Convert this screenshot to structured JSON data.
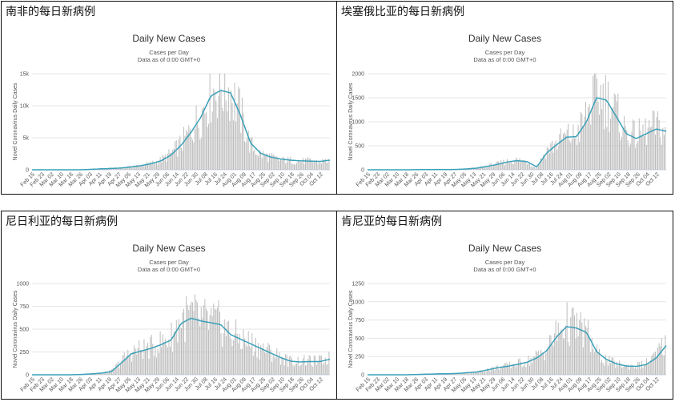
{
  "chart_data": [
    {
      "type": "bar",
      "panel_title": "南非的每日新病例",
      "title": "Daily New Cases",
      "subtitle": "Cases per Day",
      "subtitle2": "Data as of 0:00 GMT+0",
      "ylabel": "Novel Coronavirus Daily Cases",
      "ylim": [
        0,
        15000
      ],
      "yticks": [
        {
          "v": 0,
          "t": "0"
        },
        {
          "v": 5000,
          "t": "5k"
        },
        {
          "v": 10000,
          "t": "10k"
        },
        {
          "v": 15000,
          "t": "15k"
        }
      ],
      "x_labels": [
        "Feb 15",
        "Feb 23",
        "Mar 02",
        "Mar 10",
        "Mar 18",
        "Mar 26",
        "Apr 03",
        "Apr 11",
        "Apr 19",
        "Apr 27",
        "May 05",
        "May 13",
        "May 21",
        "May 29",
        "Jun 06",
        "Jun 14",
        "Jun 22",
        "Jun 30",
        "Jul 08",
        "Jul 16",
        "Jul 24",
        "Aug 01",
        "Aug 09",
        "Aug 17",
        "Aug 25",
        "Sep 02",
        "Sep 10",
        "Sep 18",
        "Sep 26",
        "Oct 04",
        "Oct 12"
      ],
      "series": [
        {
          "kind": "bar",
          "values": [
            0,
            0,
            0,
            0,
            0,
            10,
            80,
            200,
            250,
            300,
            500,
            700,
            1000,
            1500,
            2500,
            4000,
            6000,
            8500,
            12000,
            13000,
            12500,
            9000,
            4000,
            2500,
            2000,
            1500,
            1500,
            1300,
            1400,
            1200,
            1500
          ]
        },
        {
          "kind": "line",
          "values": [
            0,
            0,
            0,
            0,
            0,
            5,
            70,
            150,
            200,
            280,
            450,
            650,
            950,
            1400,
            2300,
            3800,
            5800,
            8200,
            11500,
            12400,
            12000,
            8500,
            4200,
            2600,
            2000,
            1700,
            1500,
            1400,
            1350,
            1300,
            1500
          ]
        }
      ]
    },
    {
      "type": "bar",
      "panel_title": "埃塞俄比亚的每日新病例",
      "title": "Daily New Cases",
      "subtitle": "Cases per Day",
      "subtitle2": "Data as of 0:00 GMT+0",
      "ylabel": "Novel Coronavirus Daily Cases",
      "ylim": [
        0,
        2000
      ],
      "yticks": [
        {
          "v": 0,
          "t": "0"
        },
        {
          "v": 500,
          "t": "500"
        },
        {
          "v": 1000,
          "t": "1000"
        },
        {
          "v": 1500,
          "t": "1500"
        },
        {
          "v": 2000,
          "t": "2000"
        }
      ],
      "x_labels": [
        "Feb 15",
        "Feb 23",
        "Mar 02",
        "Mar 10",
        "Mar 18",
        "Mar 26",
        "Apr 03",
        "Apr 11",
        "Apr 19",
        "Apr 27",
        "May 05",
        "May 13",
        "May 21",
        "May 29",
        "Jun 06",
        "Jun 14",
        "Jun 22",
        "Jun 30",
        "Jul 08",
        "Jul 16",
        "Jul 24",
        "Aug 01",
        "Aug 09",
        "Aug 17",
        "Aug 25",
        "Sep 02",
        "Sep 10",
        "Sep 18",
        "Sep 26",
        "Oct 04",
        "Oct 12"
      ],
      "series": [
        {
          "kind": "bar",
          "values": [
            0,
            0,
            0,
            0,
            0,
            3,
            5,
            5,
            5,
            8,
            20,
            40,
            80,
            120,
            170,
            200,
            180,
            30,
            400,
            550,
            700,
            700,
            1100,
            1600,
            1500,
            1200,
            800,
            700,
            800,
            900,
            800
          ]
        },
        {
          "kind": "line",
          "values": [
            0,
            0,
            0,
            0,
            0,
            2,
            4,
            5,
            5,
            7,
            18,
            35,
            70,
            110,
            160,
            190,
            170,
            60,
            350,
            520,
            680,
            690,
            1000,
            1500,
            1450,
            1100,
            750,
            650,
            750,
            850,
            800
          ]
        }
      ]
    },
    {
      "type": "bar",
      "panel_title": "尼日利亚的每日新病例",
      "title": "Daily New Cases",
      "subtitle": "Cases per Day",
      "subtitle2": "Data as of 0:00 GMT+0",
      "ylabel": "Novel Coronavirus Daily Cases",
      "ylim": [
        0,
        1000
      ],
      "yticks": [
        {
          "v": 0,
          "t": "0"
        },
        {
          "v": 250,
          "t": "250"
        },
        {
          "v": 500,
          "t": "500"
        },
        {
          "v": 750,
          "t": "750"
        },
        {
          "v": 1000,
          "t": "1000"
        }
      ],
      "x_labels": [
        "Feb 15",
        "Feb 23",
        "Mar 02",
        "Mar 10",
        "Mar 18",
        "Mar 26",
        "Apr 03",
        "Apr 11",
        "Apr 19",
        "Apr 27",
        "May 05",
        "May 13",
        "May 21",
        "May 29",
        "Jun 06",
        "Jun 14",
        "Jun 22",
        "Jun 30",
        "Jul 08",
        "Jul 16",
        "Jul 24",
        "Aug 01",
        "Aug 09",
        "Aug 17",
        "Aug 25",
        "Sep 02",
        "Sep 10",
        "Sep 18",
        "Sep 26",
        "Oct 04",
        "Oct 12"
      ],
      "series": [
        {
          "kind": "bar",
          "values": [
            0,
            0,
            0,
            0,
            0,
            5,
            10,
            20,
            40,
            150,
            250,
            280,
            300,
            350,
            400,
            600,
            650,
            600,
            580,
            560,
            450,
            400,
            350,
            300,
            250,
            200,
            150,
            150,
            150,
            150,
            180
          ]
        },
        {
          "kind": "line",
          "values": [
            0,
            0,
            0,
            0,
            0,
            4,
            10,
            18,
            35,
            130,
            230,
            260,
            290,
            330,
            380,
            560,
            620,
            590,
            570,
            550,
            440,
            390,
            340,
            290,
            240,
            190,
            150,
            140,
            145,
            145,
            170
          ]
        }
      ]
    },
    {
      "type": "bar",
      "panel_title": "肯尼亚的每日新病例",
      "title": "Daily New Cases",
      "subtitle": "Cases per Day",
      "subtitle2": "Data as of 0:00 GMT+0",
      "ylabel": "Novel Coronavirus Daily Cases",
      "ylim": [
        0,
        1250
      ],
      "yticks": [
        {
          "v": 0,
          "t": "0"
        },
        {
          "v": 250,
          "t": "250"
        },
        {
          "v": 500,
          "t": "500"
        },
        {
          "v": 750,
          "t": "750"
        },
        {
          "v": 1000,
          "t": "1000"
        },
        {
          "v": 1250,
          "t": "1250"
        }
      ],
      "x_labels": [
        "Feb 15",
        "Feb 23",
        "Mar 02",
        "Mar 10",
        "Mar 18",
        "Mar 26",
        "Apr 03",
        "Apr 11",
        "Apr 19",
        "Apr 27",
        "May 05",
        "May 13",
        "May 21",
        "May 29",
        "Jun 06",
        "Jun 14",
        "Jun 22",
        "Jun 30",
        "Jul 08",
        "Jul 16",
        "Jul 24",
        "Aug 01",
        "Aug 09",
        "Aug 17",
        "Aug 25",
        "Sep 02",
        "Sep 10",
        "Sep 18",
        "Sep 26",
        "Oct 04",
        "Oct 12"
      ],
      "series": [
        {
          "kind": "bar",
          "values": [
            0,
            0,
            0,
            0,
            0,
            5,
            10,
            15,
            15,
            20,
            30,
            40,
            70,
            100,
            120,
            150,
            180,
            250,
            350,
            550,
            700,
            650,
            600,
            300,
            200,
            150,
            120,
            120,
            150,
            250,
            450
          ]
        },
        {
          "kind": "line",
          "values": [
            0,
            0,
            0,
            0,
            0,
            4,
            8,
            12,
            14,
            18,
            28,
            38,
            65,
            95,
            115,
            140,
            170,
            230,
            330,
            520,
            660,
            640,
            580,
            320,
            210,
            150,
            120,
            115,
            140,
            230,
            400
          ]
        }
      ]
    }
  ]
}
